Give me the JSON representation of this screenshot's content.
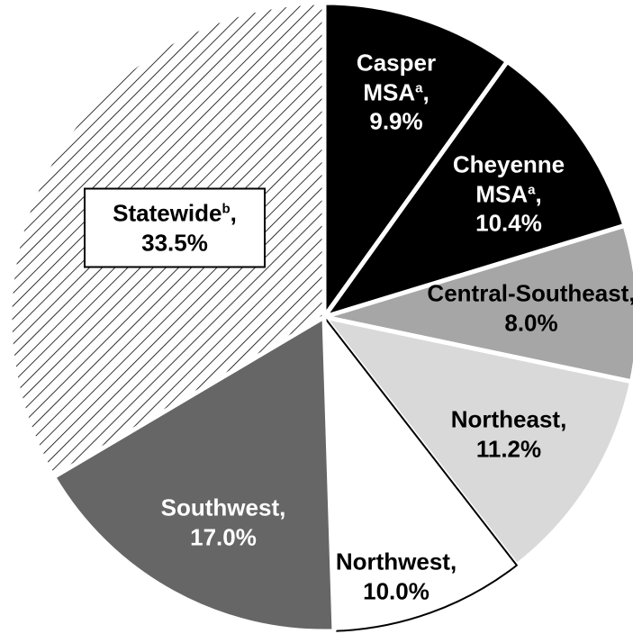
{
  "chart_data": {
    "type": "pie",
    "categories": [
      "Casper MSA",
      "Cheyenne MSA",
      "Central-Southeast",
      "Northeast",
      "Northwest",
      "Southwest",
      "Statewide"
    ],
    "footnotes": [
      "a",
      "a",
      null,
      null,
      null,
      null,
      "b"
    ],
    "separator": ",",
    "values": [
      9.9,
      10.4,
      8.0,
      11.2,
      10.0,
      17.0,
      33.5
    ],
    "value_labels": [
      "9.9%",
      "10.4%",
      "8.0%",
      "11.2%",
      "10.0%",
      "17.0%",
      "33.5%"
    ],
    "colors": [
      "#000000",
      "#000000",
      "#a6a6a6",
      "#d9d9d9",
      "#ffffff",
      "#666666",
      "hatch"
    ],
    "start": "top",
    "direction": "clockwise"
  }
}
